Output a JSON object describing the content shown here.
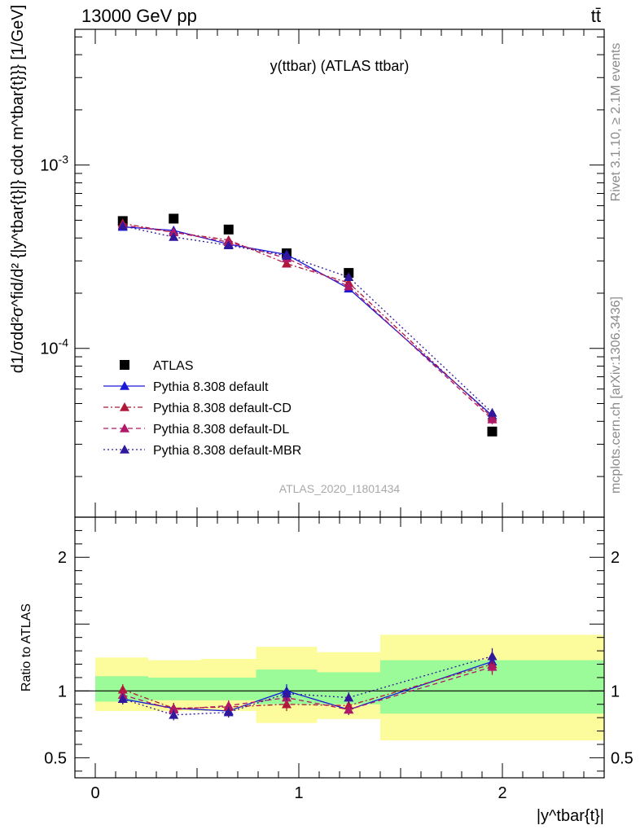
{
  "header": {
    "left": "13000 GeV pp",
    "right": "tt̄"
  },
  "side_labels": {
    "rivet": "Rivet 3.1.10, ≥ 2.1M events",
    "mcplots": "mcplots.cern.ch [arXiv:1306.3436]"
  },
  "chart_data": [
    {
      "panel": "main",
      "type": "scatter",
      "title": "y(ttbar) (ATLAS ttbar)",
      "watermark": "ATLAS_2020_I1801434",
      "ylabel": "d1/σdd²σ^fid/d² {|y^tbar{t}|} cdot m^tbar{t}}} [1/GeV]",
      "yscale": "log",
      "ylim": [
        1.2e-05,
        0.0055
      ],
      "xlim": [
        -0.1,
        2.5
      ],
      "y_ticks": [
        {
          "value": 0.0001,
          "label": "10^-4"
        },
        {
          "value": 0.001,
          "label": "10^-3"
        }
      ],
      "legend_position": "lower-left",
      "x": [
        0.135,
        0.385,
        0.655,
        0.94,
        1.245,
        1.95
      ],
      "series": [
        {
          "name": "ATLAS",
          "color": "#000000",
          "marker": "square",
          "line": "none",
          "values": [
            0.000495,
            0.00051,
            0.000445,
            0.00033,
            0.000258,
            3.52e-05
          ]
        },
        {
          "name": "Pythia 8.308 default",
          "color": "#1a1ad6",
          "marker": "triangle",
          "line": "solid",
          "values": [
            0.00046,
            0.00044,
            0.00037,
            0.000325,
            0.000212,
            4.3e-05
          ],
          "errors": [
            1.2e-05,
            1.8e-05,
            1.4e-05,
            1.3e-05,
            1e-05,
            2.5e-06
          ]
        },
        {
          "name": "Pythia 8.308 default-CD",
          "color": "#b0183a",
          "marker": "triangle",
          "line": "dashdot",
          "values": [
            0.00048,
            0.00043,
            0.00039,
            0.00029,
            0.000228,
            4.2e-05
          ],
          "errors": [
            1.2e-05,
            1.8e-05,
            1.4e-05,
            1.3e-05,
            1e-05,
            2.5e-06
          ]
        },
        {
          "name": "Pythia 8.308 default-DL",
          "color": "#b01868",
          "marker": "triangle",
          "line": "dashed",
          "values": [
            0.00047,
            0.00043,
            0.00038,
            0.00031,
            0.000218,
            4.1e-05
          ],
          "errors": [
            1.2e-05,
            1.8e-05,
            1.4e-05,
            1.3e-05,
            1e-05,
            2.5e-06
          ]
        },
        {
          "name": "Pythia 8.308 default-MBR",
          "color": "#30179c",
          "marker": "triangle",
          "line": "dotted",
          "values": [
            0.000465,
            0.000405,
            0.000365,
            0.00032,
            0.000245,
            4.45e-05
          ],
          "errors": [
            1.2e-05,
            1.8e-05,
            1.4e-05,
            1.3e-05,
            1e-05,
            2.5e-06
          ]
        }
      ]
    },
    {
      "panel": "ratio",
      "type": "line",
      "ylabel": "Ratio to ATLAS",
      "xlabel": "|y^tbar{t}|",
      "ylim": [
        0.35,
        2.3
      ],
      "xlim": [
        -0.1,
        2.5
      ],
      "x_ticks": [
        0,
        1,
        2
      ],
      "y_ticks": [
        0.5,
        1,
        2
      ],
      "bins": [
        [
          0.0,
          0.26
        ],
        [
          0.26,
          0.52
        ],
        [
          0.52,
          0.79
        ],
        [
          0.79,
          1.09
        ],
        [
          1.09,
          1.4
        ],
        [
          1.4,
          2.5
        ]
      ],
      "band_inner": [
        [
          0.92,
          1.11
        ],
        [
          0.93,
          1.1
        ],
        [
          0.93,
          1.1
        ],
        [
          0.9,
          1.16
        ],
        [
          0.9,
          1.14
        ],
        [
          0.83,
          1.23
        ]
      ],
      "band_outer": [
        [
          0.85,
          1.25
        ],
        [
          0.85,
          1.23
        ],
        [
          0.85,
          1.24
        ],
        [
          0.76,
          1.33
        ],
        [
          0.79,
          1.29
        ],
        [
          0.63,
          1.42
        ]
      ],
      "band_colors": {
        "inner": "#9bfb98",
        "outer": "#fcfc9c"
      },
      "x": [
        0.135,
        0.385,
        0.655,
        0.94,
        1.245,
        1.95
      ],
      "series": [
        {
          "name": "Pythia 8.308 default",
          "color": "#1a1ad6",
          "line": "solid",
          "values": [
            0.94,
            0.87,
            0.85,
            1.0,
            0.86,
            1.22
          ],
          "errors": [
            0.04,
            0.04,
            0.04,
            0.05,
            0.04,
            0.06
          ]
        },
        {
          "name": "Pythia 8.308 default-CD",
          "color": "#b0183a",
          "line": "dashdot",
          "values": [
            1.01,
            0.87,
            0.88,
            0.9,
            0.89,
            1.2
          ],
          "errors": [
            0.04,
            0.04,
            0.04,
            0.05,
            0.04,
            0.06
          ]
        },
        {
          "name": "Pythia 8.308 default-DL",
          "color": "#b01868",
          "line": "dashed",
          "values": [
            0.97,
            0.86,
            0.89,
            0.95,
            0.86,
            1.18
          ],
          "errors": [
            0.04,
            0.04,
            0.04,
            0.05,
            0.04,
            0.06
          ]
        },
        {
          "name": "Pythia 8.308 default-MBR",
          "color": "#30179c",
          "line": "dotted",
          "values": [
            0.94,
            0.82,
            0.84,
            0.98,
            0.95,
            1.26
          ],
          "errors": [
            0.04,
            0.04,
            0.04,
            0.05,
            0.04,
            0.06
          ]
        }
      ]
    }
  ]
}
